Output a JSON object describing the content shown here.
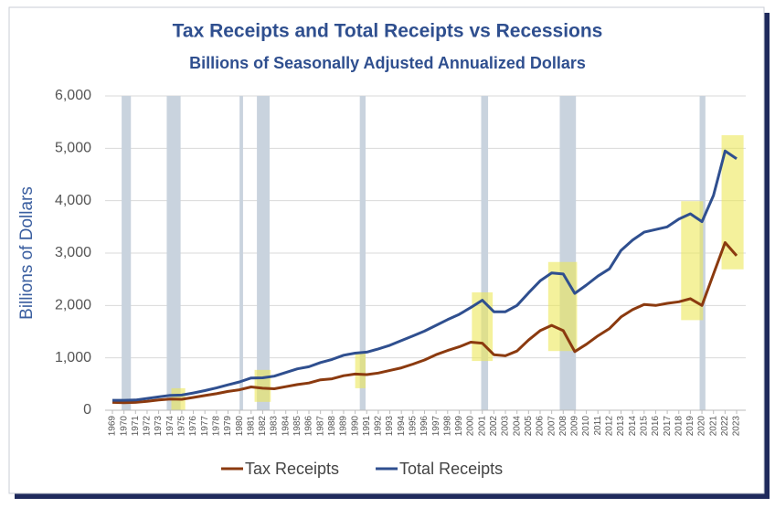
{
  "chart_data": {
    "type": "line",
    "title": "Tax Receipts and Total Receipts vs Recessions",
    "subtitle": "Billions of Seasonally Adjusted Annualized Dollars",
    "y_label": "Billions of Dollars",
    "x": [
      1969,
      1970,
      1971,
      1972,
      1973,
      1974,
      1975,
      1976,
      1977,
      1978,
      1979,
      1980,
      1981,
      1982,
      1983,
      1984,
      1985,
      1986,
      1987,
      1988,
      1989,
      1990,
      1991,
      1992,
      1993,
      1994,
      1995,
      1996,
      1997,
      1998,
      1999,
      2000,
      2001,
      2002,
      2003,
      2004,
      2005,
      2006,
      2007,
      2008,
      2009,
      2010,
      2011,
      2012,
      2013,
      2014,
      2015,
      2016,
      2017,
      2018,
      2019,
      2020,
      2021,
      2022,
      2023
    ],
    "series": [
      {
        "name": "Tax Receipts",
        "color": "#8b3a0f",
        "values": [
          150,
          145,
          150,
          170,
          195,
          215,
          210,
          245,
          280,
          315,
          360,
          390,
          445,
          420,
          410,
          450,
          490,
          520,
          580,
          600,
          660,
          690,
          680,
          710,
          760,
          810,
          880,
          960,
          1060,
          1140,
          1210,
          1300,
          1280,
          1060,
          1040,
          1130,
          1340,
          1520,
          1620,
          1520,
          1120,
          1260,
          1420,
          1560,
          1780,
          1920,
          2020,
          2000,
          2040,
          2070,
          2130,
          2000,
          2600,
          3200,
          2950
        ]
      },
      {
        "name": "Total Receipts",
        "color": "#2f4f8f",
        "values": [
          190,
          190,
          195,
          225,
          255,
          285,
          290,
          330,
          375,
          425,
          485,
          540,
          615,
          620,
          650,
          720,
          790,
          830,
          910,
          970,
          1050,
          1090,
          1110,
          1170,
          1240,
          1330,
          1420,
          1510,
          1620,
          1730,
          1830,
          1960,
          2100,
          1880,
          1880,
          2000,
          2240,
          2470,
          2620,
          2600,
          2230,
          2390,
          2560,
          2700,
          3050,
          3250,
          3400,
          3450,
          3500,
          3650,
          3750,
          3600,
          4100,
          4950,
          4800
        ]
      }
    ],
    "xlim": [
      1969,
      2023
    ],
    "xticks": [
      1969,
      1970,
      1971,
      1972,
      1973,
      1974,
      1975,
      1976,
      1977,
      1978,
      1979,
      1980,
      1981,
      1982,
      1983,
      1984,
      1985,
      1986,
      1987,
      1988,
      1989,
      1990,
      1991,
      1992,
      1993,
      1994,
      1995,
      1996,
      1997,
      1998,
      1999,
      2000,
      2001,
      2002,
      2003,
      2004,
      2005,
      2006,
      2007,
      2008,
      2009,
      2010,
      2011,
      2012,
      2013,
      2014,
      2015,
      2016,
      2017,
      2018,
      2019,
      2020,
      2021,
      2022,
      2023
    ],
    "ylim": [
      0,
      6000
    ],
    "yticks": [
      0,
      {
        "value": 1000,
        "label": "1,000"
      },
      {
        "value": 2000,
        "label": "2,000"
      },
      {
        "value": 3000,
        "label": "3,000"
      },
      {
        "value": 4000,
        "label": "4,000"
      },
      {
        "value": 5000,
        "label": "5,000"
      },
      {
        "value": 6000,
        "label": "6,000"
      }
    ],
    "grid": true,
    "legend": "bottom",
    "recessions": [
      [
        1969.8,
        1970.6
      ],
      [
        1973.7,
        1974.9
      ],
      [
        1980.0,
        1980.3
      ],
      [
        1981.5,
        1982.6
      ],
      [
        1990.4,
        1990.9
      ],
      [
        2000.9,
        2001.5
      ],
      [
        2007.7,
        2009.1
      ],
      [
        2019.8,
        2020.3
      ]
    ],
    "recession_color": "#c9d3de",
    "highlights": [
      {
        "xlim": [
          1974.1,
          1975.3
        ],
        "ylim": [
          0,
          420
        ]
      },
      {
        "xlim": [
          1981.3,
          1982.7
        ],
        "ylim": [
          160,
          770
        ]
      },
      {
        "xlim": [
          1990.0,
          1990.9
        ],
        "ylim": [
          420,
          1110
        ]
      },
      {
        "xlim": [
          2000.1,
          2001.9
        ],
        "ylim": [
          940,
          2250
        ]
      },
      {
        "xlim": [
          2006.7,
          2009.2
        ],
        "ylim": [
          1130,
          2830
        ]
      },
      {
        "xlim": [
          2018.2,
          2020.1
        ],
        "ylim": [
          1720,
          3990
        ]
      },
      {
        "xlim": [
          2021.7,
          2023.6
        ],
        "ylim": [
          2690,
          5250
        ]
      }
    ],
    "highlight_color": "#ece85a"
  }
}
